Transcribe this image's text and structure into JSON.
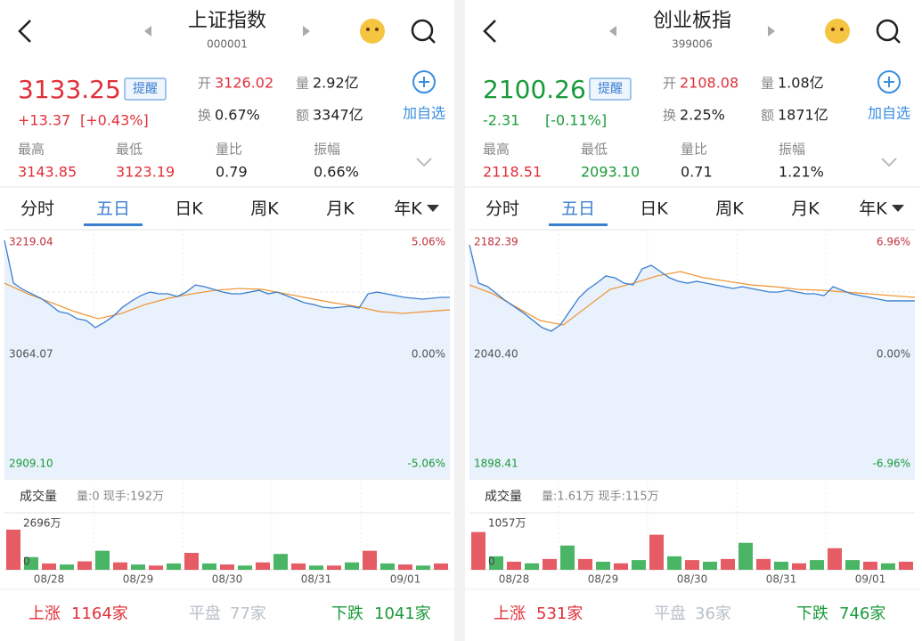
{
  "panels": [
    {
      "title": "上证指数",
      "code": "000001",
      "price": "3133.25",
      "color": "#e0303a",
      "change": "+13.37",
      "change_pct": "[+0.43%]",
      "alert": "提醒",
      "add": "加自选",
      "quote": [
        {
          "label": "开",
          "value": "3126.02",
          "color": "#e0303a"
        },
        {
          "label": "量",
          "value": "2.92亿"
        },
        {
          "label": "换",
          "value": "0.67%"
        },
        {
          "label": "额",
          "value": "3347亿"
        }
      ],
      "stats": [
        {
          "label": "最高",
          "value": "3143.85",
          "color": "#e0303a"
        },
        {
          "label": "最低",
          "value": "3123.19",
          "color": "#e0303a"
        },
        {
          "label": "量比",
          "value": "0.79"
        },
        {
          "label": "振幅",
          "value": "0.66%"
        }
      ],
      "tabs": [
        "分时",
        "五日",
        "日K",
        "周K",
        "月K",
        "年K"
      ],
      "active_tab": 1,
      "chart": {
        "ylim": [
          {
            "value": 2909.1,
            "label": "2909.10"
          },
          3219.04
        ],
        "mid": 3064.07,
        "pct_top": "5.06%",
        "pct_mid": "0.00%",
        "pct_bottom": "-5.06%",
        "price": [
          3205.8,
          3152.6,
          3144.9,
          3139.3,
          3133.8,
          3126.0,
          3117.2,
          3114.9,
          3108.3,
          3106.1,
          3097.3,
          3103.9,
          3111.7,
          3122.7,
          3130.5,
          3137.1,
          3141.5,
          3139.3,
          3139.3,
          3136.0,
          3141.5,
          3150.4,
          3148.2,
          3144.9,
          3141.5,
          3139.3,
          3139.3,
          3141.5,
          3143.7,
          3139.3,
          3141.5,
          3137.1,
          3132.7,
          3128.3,
          3126.0,
          3122.7,
          3121.6,
          3122.7,
          3123.8,
          3121.6,
          3139.3,
          3141.5,
          3139.3,
          3137.1,
          3134.9,
          3133.8,
          3132.7,
          3133.8,
          3134.9,
          3134.9
        ],
        "avg": [
          3152.6,
          3139.3,
          3128.3,
          3117.2,
          3108.3,
          3114.9,
          3126.0,
          3133.8,
          3139.3,
          3143.7,
          3145.9,
          3144.9,
          3139.3,
          3133.8,
          3128.3,
          3123.8,
          3117.2,
          3114.9,
          3117.2,
          3119.4
        ],
        "volume_title": "成交量",
        "volume_info": "量:0 现手:192万",
        "volume_lim": [
          0,
          {
            "value": 2696,
            "label": "2696万"
          }
        ],
        "volume": [
          1900,
          600,
          300,
          250,
          400,
          900,
          350,
          250,
          200,
          300,
          800,
          300,
          250,
          200,
          350,
          750,
          300,
          200,
          200,
          350,
          900,
          300,
          250,
          200,
          300
        ],
        "dates": [
          "08/28",
          "08/29",
          "08/30",
          "08/31",
          "09/01"
        ]
      },
      "breadth": [
        {
          "label": "上涨",
          "value": "1164家",
          "color": "#e0303a"
        },
        {
          "label": "平盘",
          "value": "77家",
          "color": "#b8c0c8"
        },
        {
          "label": "下跌",
          "value": "1041家",
          "color": "#1a9a3a"
        }
      ]
    },
    {
      "title": "创业板指",
      "code": "399006",
      "price": "2100.26",
      "color": "#1a9a3a",
      "change": "-2.31",
      "change_pct": "[-0.11%]",
      "alert": "提醒",
      "add": "加自选",
      "quote": [
        {
          "label": "开",
          "value": "2108.08",
          "color": "#e0303a"
        },
        {
          "label": "量",
          "value": "1.08亿"
        },
        {
          "label": "换",
          "value": "2.25%"
        },
        {
          "label": "额",
          "value": "1871亿"
        }
      ],
      "stats": [
        {
          "label": "最高",
          "value": "2118.51",
          "color": "#e0303a"
        },
        {
          "label": "最低",
          "value": "2093.10",
          "color": "#1a9a3a"
        },
        {
          "label": "量比",
          "value": "0.71"
        },
        {
          "label": "振幅",
          "value": "1.21%"
        }
      ],
      "tabs": [
        "分时",
        "五日",
        "日K",
        "周K",
        "月K",
        "年K"
      ],
      "active_tab": 1,
      "chart": {
        "ylim": [
          1898.41,
          2182.39
        ],
        "mid": {
          "value": 2040.4,
          "label": "2040.40"
        },
        "pct_top": "6.96%",
        "pct_mid": "0.00%",
        "pct_bottom": "-6.96%",
        "price": [
          2165.2,
          2121.5,
          2117.5,
          2109.4,
          2101.3,
          2094.2,
          2087.1,
          2079.0,
          2070.8,
          2066.8,
          2073.9,
          2089.1,
          2104.3,
          2114.4,
          2121.5,
          2129.7,
          2127.6,
          2121.5,
          2119.5,
          2137.8,
          2141.8,
          2134.7,
          2127.6,
          2123.6,
          2121.5,
          2123.6,
          2121.5,
          2119.5,
          2117.5,
          2115.5,
          2117.5,
          2115.5,
          2113.4,
          2111.4,
          2111.4,
          2113.4,
          2111.4,
          2109.4,
          2109.4,
          2107.3,
          2117.5,
          2113.4,
          2109.4,
          2107.3,
          2105.3,
          2103.3,
          2101.3,
          2101.3,
          2101.3,
          2101.3
        ],
        "avg": [
          2119.5,
          2109.4,
          2094.2,
          2079.0,
          2073.9,
          2094.2,
          2114.4,
          2121.5,
          2129.7,
          2134.7,
          2127.6,
          2123.6,
          2119.5,
          2117.5,
          2114.4,
          2113.4,
          2111.4,
          2109.4,
          2107.3,
          2105.3
        ],
        "volume_title": "成交量",
        "volume_info": "量:1.61万 现手:115万",
        "volume_lim": [
          0,
          {
            "value": 1057,
            "label": "1057万"
          }
        ],
        "volume": [
          700,
          250,
          150,
          120,
          200,
          450,
          200,
          150,
          120,
          180,
          650,
          250,
          180,
          150,
          200,
          500,
          200,
          150,
          120,
          180,
          400,
          180,
          150,
          120,
          150
        ],
        "dates": [
          "08/28",
          "08/29",
          "08/30",
          "08/31",
          "09/01"
        ]
      },
      "breadth": [
        {
          "label": "上涨",
          "value": "531家",
          "color": "#e0303a"
        },
        {
          "label": "平盘",
          "value": "36家",
          "color": "#b8c0c8"
        },
        {
          "label": "下跌",
          "value": "746家",
          "color": "#1a9a3a"
        }
      ]
    }
  ]
}
